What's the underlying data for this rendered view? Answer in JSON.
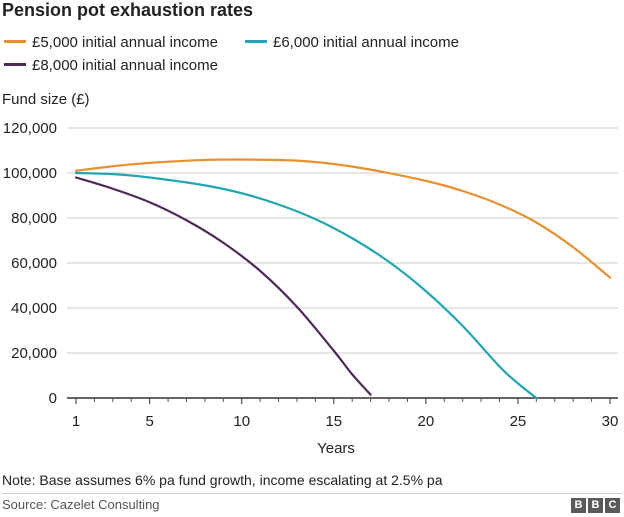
{
  "chart_data": {
    "type": "line",
    "title": "Pension pot exhaustion rates",
    "ylabel": "Fund size (£)",
    "xlabel": "Years",
    "ylim": [
      0,
      120000
    ],
    "xlim": [
      1,
      30
    ],
    "yticks": [
      "0",
      "20,000",
      "40,000",
      "60,000",
      "80,000",
      "100,000",
      "120,000"
    ],
    "ytick_values": [
      0,
      20000,
      40000,
      60000,
      80000,
      100000,
      120000
    ],
    "xticks": [
      "1",
      "5",
      "10",
      "15",
      "20",
      "25",
      "30"
    ],
    "xtick_values": [
      1,
      5,
      10,
      15,
      20,
      25,
      30
    ],
    "grid": "horizontal",
    "legend_position": "top",
    "series": [
      {
        "name": "£5,000 initial annual income",
        "color": "#e8902e",
        "x": [
          1,
          3,
          5,
          8,
          10,
          13,
          15,
          17,
          20,
          22,
          24,
          26,
          28,
          30
        ],
        "y": [
          101000,
          103000,
          104500,
          105800,
          106000,
          105500,
          104000,
          101500,
          96500,
          92000,
          86000,
          78000,
          67000,
          53500
        ]
      },
      {
        "name": "£6,000 initial annual income",
        "color": "#1fa6b2",
        "x": [
          1,
          3,
          5,
          8,
          10,
          12,
          14,
          16,
          18,
          20,
          22,
          24,
          25,
          26
        ],
        "y": [
          100000,
          99500,
          98000,
          94500,
          91000,
          86000,
          79500,
          71000,
          60500,
          47500,
          32000,
          14000,
          6500,
          0
        ]
      },
      {
        "name": "£8,000 initial annual income",
        "color": "#4e2a57",
        "x": [
          1,
          3,
          5,
          7,
          9,
          11,
          13,
          15,
          16,
          17
        ],
        "y": [
          98000,
          93000,
          87000,
          79000,
          69000,
          56500,
          40500,
          21000,
          10500,
          1500
        ]
      }
    ]
  },
  "note": "Note: Base assumes 6% pa fund growth, income escalating at 2.5% pa",
  "source": "Source: Cazelet Consulting",
  "logo_letters": [
    "B",
    "B",
    "C"
  ]
}
